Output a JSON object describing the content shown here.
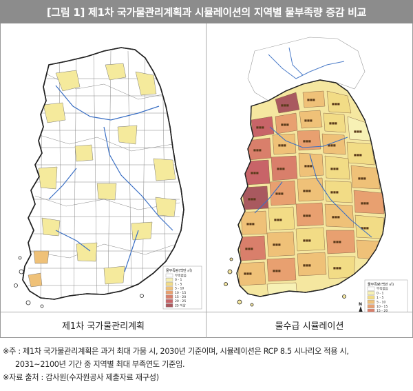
{
  "title": "[그림 1] 제1차 국가물관리계획과 시뮬레이션의 지역별 물부족량 증감 비교",
  "left_panel": {
    "caption": "제1차 국가물관리계획"
  },
  "right_panel": {
    "caption": "물수급 시뮬레이션"
  },
  "legend": {
    "title": "물부족량(백만 ㎥)",
    "items": [
      {
        "label": "부족없음",
        "color": "#ffffff"
      },
      {
        "label": "0 - 1",
        "color": "#f7f1b5"
      },
      {
        "label": "1 - 5",
        "color": "#f2dc86"
      },
      {
        "label": "5 - 10",
        "color": "#efc178"
      },
      {
        "label": "10 - 15",
        "color": "#e8a070"
      },
      {
        "label": "15 - 20",
        "color": "#d97f6b"
      },
      {
        "label": "20 - 25",
        "color": "#c86468"
      },
      {
        "label": "25 이상",
        "color": "#a9595f"
      }
    ]
  },
  "north_arrow": "N",
  "notes": {
    "line1": "※주 : 제1차 국가물관리계획은 과거 최대 가뭄 시, 2030년 기준이며, 시뮬레이션은 RCP 8.5 시나리오 적용 시,",
    "line2": "2031~2100년 기간 중 지역별 최대 부족연도 기준임.",
    "line3": "※자료 출처 : 감사원(수자원공사 제출자료 재구성)"
  },
  "colors": {
    "title_bg": "#8c8c8c",
    "border": "#aaaaaa",
    "river": "#3a6fc4",
    "outline": "#222222"
  }
}
